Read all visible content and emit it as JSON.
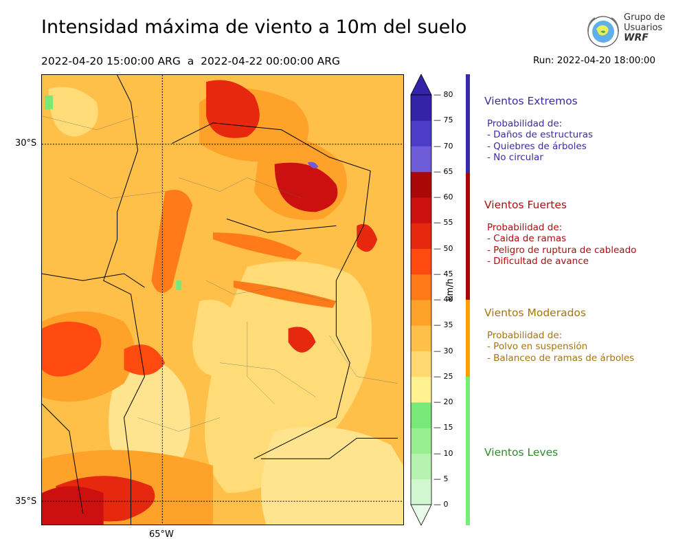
{
  "title": "Intensidad máxima de viento a 10m del suelo",
  "period": "2022-04-20 15:00:00 ARG  a  2022-04-22 00:00:00 ARG",
  "run": "Run: 2022-04-20 18:00:00",
  "logo": {
    "line1": "Grupo de",
    "line2": "Usuarios",
    "line3": "WRF"
  },
  "map": {
    "lat_labels": [
      "30°S",
      "35°S"
    ],
    "lon_labels": [
      "65°W"
    ]
  },
  "colorbar": {
    "unit": "km/h",
    "ticks": [
      "0",
      "5",
      "10",
      "15",
      "20",
      "25",
      "30",
      "35",
      "40",
      "45",
      "50",
      "55",
      "60",
      "65",
      "70",
      "75",
      "80"
    ],
    "colors": [
      "#e8fbe8",
      "#d0f7d0",
      "#b6f2b0",
      "#98ee90",
      "#78e878",
      "#fff090",
      "#ffd870",
      "#ffc04a",
      "#ffa22a",
      "#ff7a18",
      "#ff4a10",
      "#e6280e",
      "#cc0f0f",
      "#aa0808",
      "#6e5cd8",
      "#4c3cc8",
      "#3422a8"
    ],
    "fill_order_note": ""
  },
  "categories": [
    {
      "title": "Vientos Extremos",
      "color": "#3a2aa6",
      "bar_color": "#3a2aa6",
      "lines": [
        "Probabilidad de:",
        "- Daños de estructuras",
        "- Quiebres de árboles",
        "- No circular"
      ]
    },
    {
      "title": "Vientos Fuertes",
      "color": "#aa0f0f",
      "bar_color": "#aa0505",
      "lines": [
        "Probabilidad de:",
        "- Caida de ramas",
        "- Peligro de ruptura de cableado",
        "- Dificultad de avance"
      ]
    },
    {
      "title": "Vientos Moderados",
      "color": "#a8740c",
      "bar_color": "#ff9f00",
      "lines": [
        "Probabilidad de:",
        "- Polvo en suspensión",
        "- Balanceo de ramas de árboles"
      ]
    },
    {
      "title": "Vientos Leves",
      "color": "#2e8a2e",
      "bar_color": "#76ee76",
      "lines": []
    }
  ]
}
